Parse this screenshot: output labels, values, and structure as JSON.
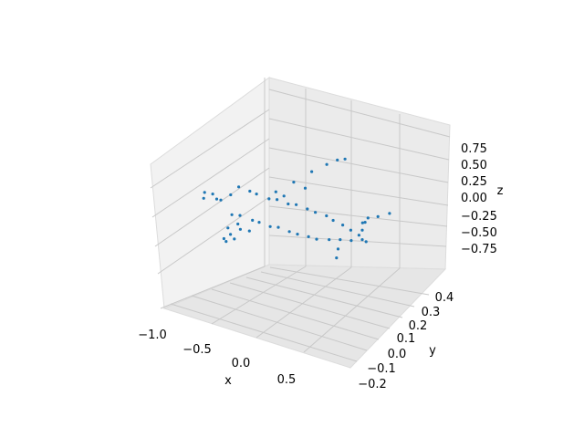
{
  "chart_data": {
    "type": "scatter",
    "projection": "3d",
    "title": "",
    "xlabel": "x",
    "ylabel": "y",
    "zlabel": "z",
    "xlim": [
      -1.0,
      1.0
    ],
    "ylim": [
      -0.25,
      0.45
    ],
    "zlim": [
      -1.0,
      1.0
    ],
    "xticks": [
      "−1.0",
      "−0.5",
      "0.0",
      "0.5"
    ],
    "yticks": [
      "−0.2",
      "−0.1",
      "0.0",
      "0.1",
      "0.2",
      "0.3",
      "0.4"
    ],
    "zticks": [
      "0.75",
      "0.50",
      "0.25",
      "0.00",
      "−0.25",
      "−0.50",
      "−0.75"
    ],
    "grid": true,
    "pane_color": "#f2f2f2",
    "marker_color": "#1f77b4",
    "series": [
      {
        "points": [
          [
            -0.84,
            -0.01,
            -0.06
          ],
          [
            -0.8,
            -0.03,
            0.05
          ],
          [
            -0.75,
            0.02,
            -0.08
          ],
          [
            -0.7,
            -0.04,
            0.08
          ],
          [
            -0.65,
            0.05,
            -0.04
          ],
          [
            -0.6,
            -0.05,
            0.06
          ],
          [
            -0.55,
            0.04,
            0.1
          ],
          [
            -0.5,
            -0.04,
            -0.09
          ],
          [
            -0.45,
            0.05,
            0.07
          ],
          [
            -0.4,
            -0.05,
            -0.05
          ],
          [
            -0.35,
            0.03,
            0.1
          ],
          [
            -0.3,
            -0.03,
            -0.1
          ],
          [
            -0.25,
            0.05,
            0.05
          ],
          [
            -0.2,
            -0.05,
            -0.06
          ],
          [
            -0.15,
            0.04,
            0.09
          ],
          [
            -0.1,
            -0.04,
            -0.09
          ],
          [
            -0.05,
            0.05,
            0.06
          ],
          [
            0.0,
            -0.05,
            -0.05
          ],
          [
            0.05,
            0.04,
            0.1
          ],
          [
            0.1,
            -0.04,
            -0.08
          ],
          [
            0.15,
            0.05,
            0.07
          ],
          [
            0.2,
            -0.05,
            -0.06
          ],
          [
            0.25,
            0.04,
            0.08
          ],
          [
            0.3,
            -0.04,
            -0.07
          ],
          [
            0.35,
            0.05,
            0.06
          ],
          [
            0.4,
            -0.05,
            -0.05
          ],
          [
            0.45,
            0.03,
            0.07
          ],
          [
            0.5,
            -0.03,
            -0.05
          ],
          [
            0.55,
            0.03,
            0.05
          ],
          [
            0.6,
            -0.02,
            -0.03
          ],
          [
            0.65,
            0.02,
            0.04
          ],
          [
            0.7,
            -0.01,
            -0.02
          ],
          [
            0.75,
            0.01,
            0.03
          ],
          [
            0.8,
            0.0,
            0.01
          ],
          [
            0.84,
            0.0,
            0.0
          ],
          [
            -0.3,
            0.13,
            0.0
          ],
          [
            -0.25,
            0.22,
            0.0
          ],
          [
            -0.2,
            0.31,
            0.01
          ],
          [
            -0.15,
            0.38,
            0.01
          ],
          [
            -0.1,
            0.42,
            0.02
          ],
          [
            -0.05,
            0.44,
            0.02
          ],
          [
            -0.2,
            0.12,
            0.0
          ],
          [
            -0.1,
            0.2,
            0.01
          ],
          [
            -0.3,
            -0.13,
            0.0
          ],
          [
            -0.27,
            -0.2,
            -0.01
          ],
          [
            -0.24,
            -0.25,
            -0.01
          ],
          [
            -0.2,
            -0.22,
            -0.01
          ],
          [
            -0.15,
            -0.15,
            0.0
          ],
          [
            -0.45,
            -0.1,
            -0.14
          ],
          [
            -0.4,
            -0.16,
            -0.16
          ],
          [
            -0.35,
            -0.08,
            -0.15
          ],
          [
            0.65,
            0.1,
            0.01
          ],
          [
            0.72,
            0.16,
            0.02
          ],
          [
            0.78,
            0.2,
            0.02
          ],
          [
            0.7,
            -0.1,
            0.01
          ],
          [
            0.76,
            -0.15,
            0.0
          ],
          [
            0.8,
            0.0,
            0.12
          ],
          [
            0.83,
            0.0,
            0.22
          ],
          [
            0.86,
            0.0,
            0.28
          ]
        ]
      }
    ]
  }
}
